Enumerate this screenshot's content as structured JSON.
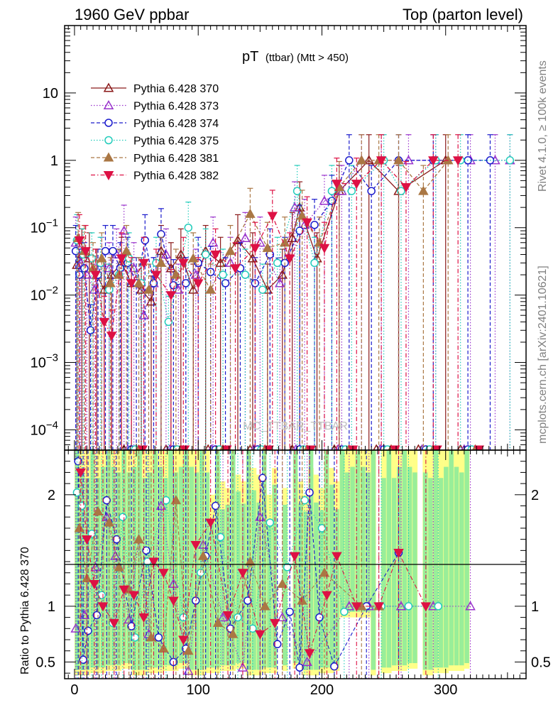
{
  "header": {
    "left": "1960 GeV ppbar",
    "right": "Top (parton level)"
  },
  "side_labels": {
    "events": "Rivet 4.1.0, ≥ 100k events",
    "source": "mcplots.cern.ch [arXiv:2401.10621]"
  },
  "watermark": "MC_TTBAR_TTBAR",
  "chart_data": {
    "type": "scatter",
    "title_main": "pT",
    "title_sub": "(ttbar) (Mtt > 450)",
    "xlabel": "",
    "ylabel_ratio": "Ratio to Pythia 6.428 370",
    "xlim": [
      -8,
      365
    ],
    "ylim_main": [
      5e-05,
      100
    ],
    "ylim_ratio": [
      0.35,
      2.4
    ],
    "x_ticks": [
      0,
      100,
      200,
      300
    ],
    "y_ticks_main": [
      "10^-4",
      "10^-3",
      "10^-2",
      "10^-1",
      "1",
      "10"
    ],
    "y_ticks_ratio": [
      0.5,
      1,
      2
    ],
    "legend_position": "top-left",
    "series": [
      {
        "name": "Pythia 6.428 370",
        "color": "#8b1a1a",
        "marker": "triangle-up-open",
        "dash": "solid",
        "x": [
          2,
          6,
          12,
          18,
          24,
          30,
          38,
          46,
          54,
          62,
          70,
          78,
          86,
          96,
          106,
          118,
          132,
          144,
          156,
          168,
          176,
          182,
          196,
          214,
          238,
          262,
          300
        ],
        "y": [
          0.028,
          0.04,
          0.035,
          0.02,
          0.012,
          0.02,
          0.03,
          0.015,
          0.012,
          0.008,
          0.045,
          0.025,
          0.04,
          0.012,
          0.045,
          0.03,
          0.065,
          0.035,
          0.012,
          0.02,
          0.07,
          0.2,
          0.035,
          0.35,
          1.0,
          0.35,
          1.0
        ]
      },
      {
        "name": "Pythia 6.428 373",
        "color": "#9933cc",
        "marker": "triangle-up-open",
        "dash": "dotted",
        "x": [
          1,
          5,
          10,
          16,
          22,
          28,
          34,
          40,
          48,
          56,
          64,
          74,
          84,
          98,
          112,
          126,
          138,
          150,
          166,
          178,
          186,
          202,
          216,
          232,
          248,
          270,
          292,
          320,
          340,
          352
        ],
        "y": [
          0.06,
          0.03,
          0.02,
          0.012,
          0.03,
          0.025,
          0.04,
          0.09,
          0.025,
          0.005,
          0.015,
          0.04,
          0.012,
          0.02,
          0.06,
          0.03,
          0.07,
          0.06,
          0.015,
          0.2,
          0.11,
          0.25,
          0.35,
          1.0,
          1.0,
          1.0,
          1.0,
          1.0,
          1.0,
          1.0
        ]
      },
      {
        "name": "Pythia 6.428 374",
        "color": "#1a1acc",
        "marker": "circle-open",
        "dash": "dashed",
        "x": [
          1,
          4,
          8,
          13,
          19,
          25,
          31,
          37,
          43,
          50,
          57,
          64,
          70,
          80,
          90,
          100,
          110,
          122,
          134,
          146,
          158,
          170,
          182,
          194,
          208,
          222,
          240,
          262,
          290,
          318,
          336
        ],
        "y": [
          0.045,
          0.02,
          0.025,
          0.003,
          0.02,
          0.045,
          0.045,
          0.025,
          0.03,
          0.015,
          0.065,
          0.015,
          0.08,
          0.014,
          0.015,
          0.03,
          0.022,
          0.015,
          0.025,
          0.015,
          0.04,
          0.03,
          0.09,
          0.11,
          0.25,
          1.0,
          0.35,
          1.0,
          1.0,
          1.0,
          1.0
        ]
      },
      {
        "name": "Pythia 6.428 375",
        "color": "#22ccbb",
        "marker": "circle-open",
        "dash": "dotted",
        "x": [
          2,
          7,
          14,
          21,
          28,
          36,
          44,
          54,
          66,
          76,
          92,
          106,
          120,
          138,
          152,
          164,
          180,
          194,
          208,
          224,
          250,
          264,
          292,
          312,
          352
        ],
        "y": [
          0.065,
          0.04,
          0.035,
          0.03,
          0.012,
          0.02,
          0.035,
          0.015,
          0.03,
          0.004,
          0.1,
          0.04,
          0.02,
          0.02,
          0.012,
          0.03,
          0.35,
          0.03,
          0.35,
          0.35,
          1.0,
          0.35,
          1.0,
          1.0,
          1.0
        ]
      },
      {
        "name": "Pythia 6.428 381",
        "color": "#aa7744",
        "marker": "triangle-up-filled",
        "dash": "dashed",
        "x": [
          3,
          8,
          15,
          22,
          29,
          36,
          42,
          52,
          60,
          70,
          82,
          96,
          110,
          126,
          142,
          156,
          170,
          184,
          198,
          214,
          232,
          246,
          262,
          282,
          302
        ],
        "y": [
          0.07,
          0.045,
          0.025,
          0.035,
          0.015,
          0.02,
          0.045,
          0.015,
          0.012,
          0.03,
          0.02,
          0.035,
          0.012,
          0.045,
          0.16,
          0.05,
          0.06,
          0.15,
          0.06,
          0.4,
          1.0,
          1.0,
          1.0,
          0.35,
          1.0
        ]
      },
      {
        "name": "Pythia 6.428 382",
        "color": "#dd1144",
        "marker": "triangle-down-filled",
        "dash": "dashdot",
        "x": [
          4,
          9,
          17,
          24,
          30,
          38,
          46,
          56,
          66,
          78,
          88,
          100,
          114,
          130,
          146,
          160,
          174,
          188,
          202,
          212,
          228,
          248,
          268,
          290,
          310
        ],
        "y": [
          0.065,
          0.045,
          0.02,
          0.004,
          0.0025,
          0.035,
          0.015,
          0.03,
          0.02,
          0.01,
          0.03,
          0.015,
          0.04,
          0.025,
          0.05,
          0.15,
          0.035,
          0.12,
          0.05,
          0.45,
          0.45,
          1.0,
          0.4,
          1.0,
          1.0
        ]
      }
    ],
    "ratio_series": [
      {
        "name": "Pythia 6.428 373",
        "x": [
          1,
          8,
          17,
          26,
          33,
          44,
          52,
          60,
          70,
          80,
          92,
          104,
          120,
          136,
          150,
          168,
          188,
          222,
          238,
          264,
          290,
          320
        ],
        "y": [
          0.8,
          0.92,
          1.35,
          1.8,
          1.45,
          0.88,
          1.6,
          0.75,
          1.9,
          1.2,
          0.42,
          1.55,
          0.9,
          0.45,
          1.8,
          0.9,
          0.5,
          1.0,
          1.0,
          1.0,
          1.0,
          1.0
        ]
      },
      {
        "name": "Pythia 6.428 374",
        "x": [
          3,
          7,
          11,
          18,
          26,
          34,
          46,
          58,
          68,
          80,
          90,
          98,
          106,
          114,
          126,
          140,
          152,
          164,
          174,
          182,
          190,
          198,
          210,
          236,
          262
        ],
        "y": [
          2.3,
          0.52,
          0.78,
          0.92,
          1.95,
          1.6,
          0.82,
          1.5,
          0.72,
          0.5,
          0.62,
          1.05,
          1.45,
          1.9,
          0.8,
          1.05,
          2.15,
          0.66,
          0.95,
          0.45,
          2.02,
          0.9,
          0.46,
          1.0,
          1.48
        ]
      },
      {
        "name": "Pythia 6.428 375",
        "x": [
          2,
          6,
          14,
          22,
          31,
          39,
          49,
          59,
          74,
          88,
          102,
          118,
          132,
          144,
          158,
          172,
          186,
          200,
          218,
          248,
          270,
          294
        ],
        "y": [
          2.02,
          1.9,
          1.65,
          1.1,
          0.85,
          1.8,
          0.72,
          1.4,
          1.95,
          0.9,
          1.3,
          1.62,
          0.9,
          0.8,
          1.75,
          1.35,
          1.95,
          1.7,
          0.95,
          1.0,
          1.0,
          1.0
        ]
      },
      {
        "name": "Pythia 6.428 381",
        "x": [
          4,
          10,
          19,
          28,
          36,
          44,
          52,
          62,
          72,
          82,
          92,
          104,
          116,
          128,
          142,
          154,
          168,
          184,
          202,
          232,
          246
        ],
        "y": [
          1.7,
          1.25,
          1.85,
          1.75,
          1.35,
          1.15,
          1.6,
          0.72,
          0.62,
          1.95,
          0.6,
          1.45,
          0.85,
          0.75,
          1.4,
          1.0,
          1.2,
          1.05,
          1.3,
          1.0,
          1.0
        ]
      },
      {
        "name": "Pythia 6.428 382",
        "x": [
          5,
          10,
          16,
          23,
          32,
          40,
          48,
          56,
          64,
          72,
          80,
          88,
          98,
          110,
          124,
          136,
          150,
          162,
          178,
          190,
          204,
          212,
          228,
          246,
          262,
          284
        ],
        "y": [
          2.2,
          1.6,
          1.2,
          1.0,
          0.85,
          1.15,
          1.1,
          0.9,
          1.4,
          1.3,
          1.05,
          0.7,
          1.55,
          1.75,
          0.92,
          1.3,
          0.75,
          0.85,
          1.45,
          0.58,
          1.1,
          1.45,
          1.0,
          1.0,
          1.48,
          1.0
        ]
      }
    ]
  }
}
